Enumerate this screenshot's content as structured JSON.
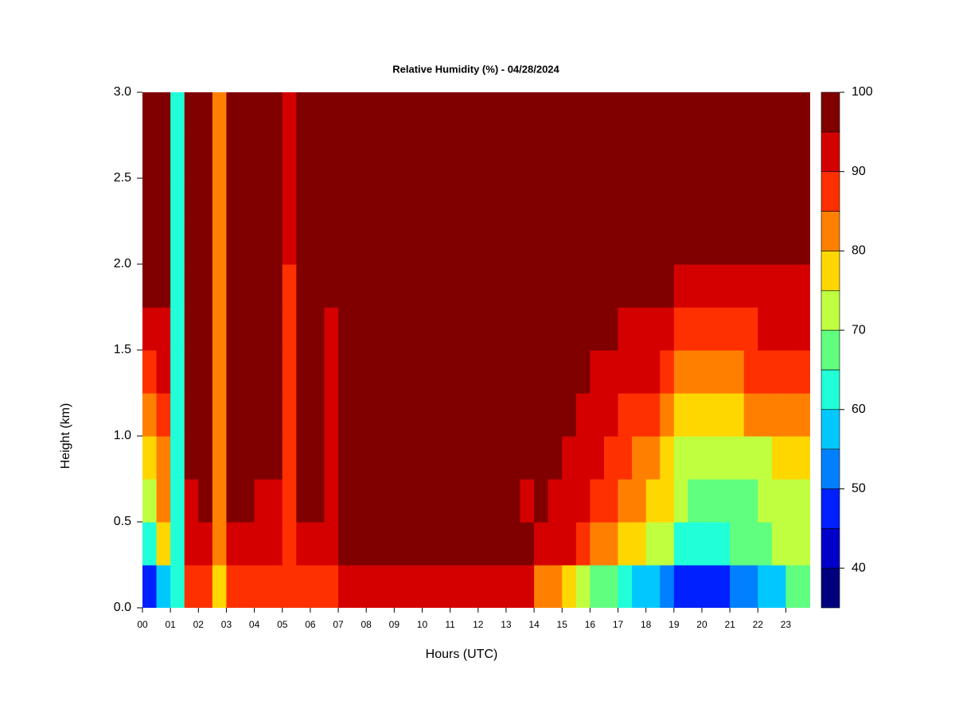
{
  "chart_data": {
    "type": "heatmap",
    "title": "Relative Humidity (%) - 04/28/2024",
    "x_label": "Hours (UTC)",
    "y_label": "Height (km)",
    "x": [
      0,
      0.5,
      1,
      1.5,
      2,
      2.5,
      3,
      3.5,
      4,
      4.5,
      5,
      5.5,
      6,
      6.5,
      7,
      7.5,
      8,
      8.5,
      9,
      9.5,
      10,
      10.5,
      11,
      11.5,
      12,
      12.5,
      13,
      13.5,
      14,
      14.5,
      15,
      15.5,
      16,
      16.5,
      17,
      17.5,
      18,
      18.5,
      19,
      19.5,
      20,
      20.5,
      21,
      21.5,
      22,
      22.5,
      23,
      23.5
    ],
    "y": [
      0,
      0.25,
      0.5,
      0.75,
      1,
      1.25,
      1.5,
      1.75,
      2,
      2.25,
      2.5,
      2.75
    ],
    "z": [
      [
        45,
        58,
        60,
        86,
        88,
        78,
        88,
        88,
        88,
        88,
        85,
        88,
        88,
        88,
        90,
        92,
        92,
        92,
        92,
        92,
        92,
        92,
        92,
        92,
        92,
        92,
        92,
        92,
        82,
        80,
        78,
        72,
        68,
        65,
        60,
        58,
        55,
        52,
        45,
        45,
        45,
        48,
        50,
        52,
        55,
        58,
        65,
        66
      ],
      [
        62,
        75,
        60,
        90,
        93,
        80,
        93,
        93,
        92,
        93,
        85,
        94,
        94,
        93,
        96,
        97,
        97,
        97,
        97,
        97,
        97,
        97,
        97,
        97,
        97,
        97,
        97,
        97,
        92,
        90,
        90,
        85,
        82,
        80,
        78,
        75,
        72,
        70,
        62,
        60,
        62,
        64,
        65,
        68,
        68,
        70,
        72,
        72
      ],
      [
        72,
        80,
        60,
        93,
        95,
        80,
        95,
        95,
        94,
        94,
        85,
        96,
        96,
        93,
        97,
        97,
        97,
        97,
        97,
        97,
        97,
        97,
        97,
        97,
        97,
        97,
        95,
        93,
        95,
        93,
        92,
        90,
        88,
        86,
        84,
        82,
        78,
        76,
        70,
        68,
        68,
        68,
        68,
        68,
        70,
        70,
        70,
        72
      ],
      [
        76,
        82,
        60,
        95,
        96,
        80,
        97,
        97,
        96,
        96,
        85,
        97,
        97,
        93,
        97,
        97,
        97,
        97,
        97,
        97,
        97,
        97,
        97,
        97,
        97,
        97,
        97,
        97,
        96,
        95,
        93,
        92,
        90,
        88,
        86,
        84,
        80,
        78,
        72,
        72,
        70,
        70,
        72,
        74,
        74,
        75,
        75,
        76
      ],
      [
        80,
        85,
        60,
        96,
        97,
        80,
        97,
        97,
        97,
        97,
        85,
        97,
        97,
        93,
        97,
        97,
        97,
        97,
        97,
        97,
        97,
        97,
        97,
        97,
        97,
        97,
        97,
        97,
        97,
        96,
        95,
        94,
        92,
        90,
        88,
        86,
        85,
        83,
        78,
        77,
        76,
        76,
        78,
        80,
        80,
        82,
        82,
        83
      ],
      [
        88,
        90,
        60,
        97,
        97,
        80,
        97,
        97,
        97,
        97,
        85,
        97,
        97,
        93,
        97,
        97,
        97,
        97,
        97,
        97,
        97,
        97,
        97,
        97,
        97,
        97,
        97,
        97,
        97,
        97,
        96,
        95,
        94,
        93,
        92,
        90,
        90,
        88,
        84,
        83,
        82,
        82,
        84,
        85,
        86,
        86,
        86,
        87
      ],
      [
        93,
        93,
        60,
        97,
        97,
        80,
        97,
        97,
        97,
        97,
        85,
        97,
        97,
        93,
        97,
        97,
        97,
        97,
        97,
        97,
        97,
        97,
        97,
        97,
        97,
        97,
        97,
        97,
        97,
        97,
        97,
        96,
        96,
        95,
        94,
        93,
        93,
        92,
        88,
        88,
        87,
        87,
        88,
        89,
        90,
        90,
        90,
        91
      ],
      [
        95,
        95,
        60,
        97,
        97,
        80,
        97,
        97,
        97,
        97,
        88,
        97,
        97,
        97,
        97,
        97,
        97,
        97,
        97,
        97,
        97,
        97,
        97,
        97,
        97,
        97,
        97,
        97,
        97,
        97,
        97,
        97,
        97,
        97,
        96,
        96,
        96,
        95,
        93,
        93,
        92,
        93,
        93,
        93,
        94,
        94,
        94,
        94
      ],
      [
        97,
        97,
        60,
        97,
        97,
        80,
        97,
        97,
        97,
        97,
        93,
        97,
        97,
        97,
        97,
        97,
        97,
        97,
        97,
        97,
        97,
        97,
        97,
        97,
        97,
        97,
        97,
        97,
        97,
        97,
        97,
        97,
        97,
        97,
        97,
        97,
        97,
        97,
        97,
        97,
        97,
        97,
        97,
        97,
        97,
        97,
        97,
        97
      ],
      [
        97,
        97,
        60,
        97,
        97,
        80,
        97,
        97,
        97,
        97,
        93,
        97,
        97,
        97,
        97,
        97,
        97,
        97,
        97,
        97,
        97,
        97,
        97,
        97,
        97,
        97,
        97,
        97,
        97,
        97,
        97,
        97,
        97,
        97,
        97,
        97,
        97,
        97,
        97,
        97,
        97,
        97,
        97,
        97,
        97,
        97,
        97,
        97
      ],
      [
        97,
        97,
        60,
        97,
        97,
        80,
        97,
        97,
        97,
        97,
        93,
        97,
        97,
        97,
        97,
        97,
        97,
        97,
        97,
        97,
        97,
        97,
        97,
        97,
        97,
        97,
        97,
        97,
        97,
        97,
        97,
        97,
        97,
        97,
        97,
        97,
        97,
        97,
        97,
        97,
        97,
        97,
        97,
        97,
        97,
        97,
        97,
        97
      ],
      [
        97,
        97,
        60,
        97,
        97,
        80,
        97,
        97,
        97,
        97,
        93,
        97,
        97,
        97,
        97,
        97,
        97,
        97,
        97,
        97,
        97,
        97,
        97,
        97,
        97,
        97,
        97,
        97,
        97,
        97,
        97,
        97,
        97,
        97,
        97,
        97,
        97,
        97,
        97,
        97,
        97,
        97,
        97,
        97,
        97,
        97,
        97,
        97
      ]
    ],
    "xlim": [
      0,
      23.87
    ],
    "ylim": [
      0,
      3
    ],
    "xticks": [
      {
        "value": 0,
        "label": "00"
      },
      {
        "value": 1,
        "label": "01"
      },
      {
        "value": 2,
        "label": "02"
      },
      {
        "value": 3,
        "label": "03"
      },
      {
        "value": 4,
        "label": "04"
      },
      {
        "value": 5,
        "label": "05"
      },
      {
        "value": 6,
        "label": "06"
      },
      {
        "value": 7,
        "label": "07"
      },
      {
        "value": 8,
        "label": "08"
      },
      {
        "value": 9,
        "label": "09"
      },
      10,
      11,
      12,
      13,
      14,
      15,
      16,
      17,
      18,
      19,
      20,
      21,
      22,
      23
    ],
    "yticks": [
      {
        "value": 0,
        "label": "0.0"
      },
      0.5,
      {
        "value": 1,
        "label": "1.0"
      },
      1.5,
      {
        "value": 2,
        "label": "2.0"
      },
      2.5,
      {
        "value": 3,
        "label": "3.0"
      }
    ],
    "levels": [
      35,
      40,
      45,
      50,
      55,
      60,
      65,
      70,
      75,
      80,
      85,
      90,
      95,
      100
    ],
    "colors": [
      "#00007f",
      "#0000c8",
      "#0020ff",
      "#0080ff",
      "#00c8ff",
      "#20ffd8",
      "#60ff80",
      "#c0ff40",
      "#ffd700",
      "#ff8000",
      "#ff3000",
      "#d40000",
      "#800000"
    ],
    "colorbar_ticks": [
      40,
      50,
      60,
      70,
      80,
      90,
      100
    ]
  }
}
